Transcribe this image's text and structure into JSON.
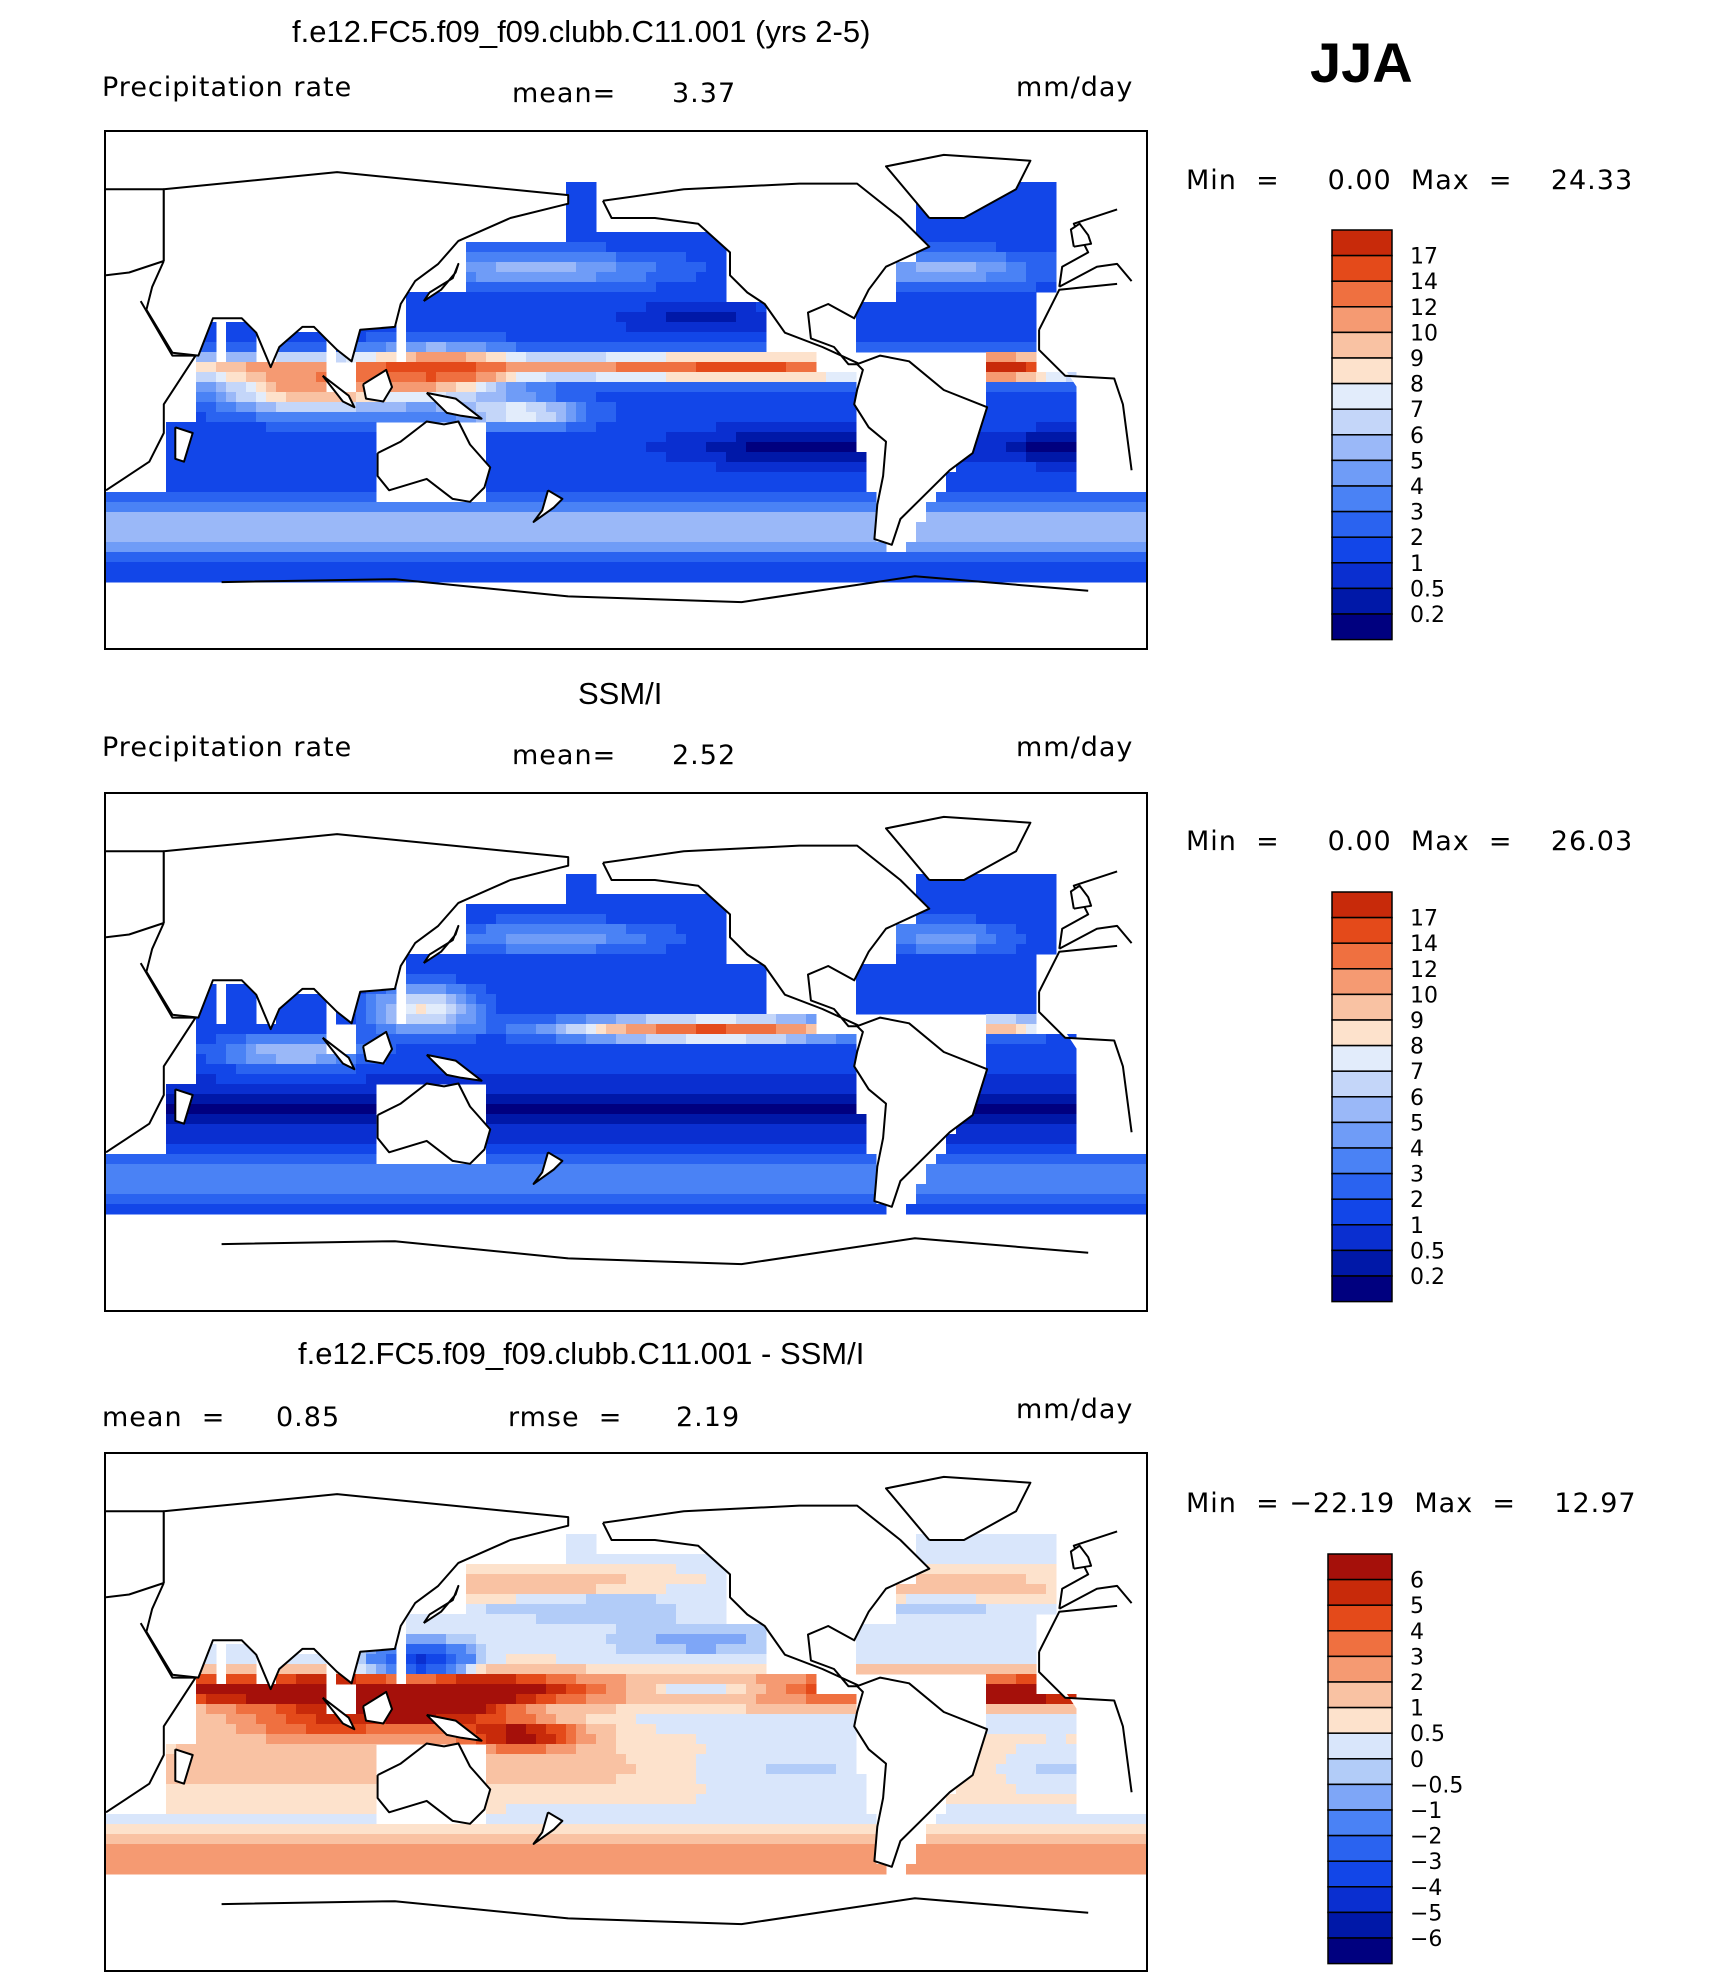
{
  "season": "JJA",
  "colors": {
    "precip_scale": [
      "#00007f",
      "#0018a8",
      "#0a2fd0",
      "#1246e8",
      "#2a63f0",
      "#4a82f5",
      "#6f9cf7",
      "#9ab8f8",
      "#c4d6f9",
      "#e2ecfb",
      "#fde2cc",
      "#f9c2a3",
      "#f59a72",
      "#ef7040",
      "#e44a1a",
      "#c82a0a",
      "#a5100a",
      "#7f0000"
    ],
    "diff_scale": [
      "#00007f",
      "#0018a8",
      "#0a2fd0",
      "#1246e8",
      "#2a63f0",
      "#4a82f5",
      "#7ea6f7",
      "#b2ccf8",
      "#d9e6fb",
      "#fde2cc",
      "#f9c2a3",
      "#f59a72",
      "#ef7040",
      "#e44a1a",
      "#c82a0a",
      "#a5100a",
      "#7f0000"
    ],
    "land": "#ffffff",
    "coast": "#000000"
  },
  "panels": [
    {
      "title": "f.e12.FC5.f09_f09.clubb.C11.001 (yrs 2-5)",
      "left_label": "Precipitation  rate",
      "center_label": "mean=",
      "center_value": "3.37",
      "units": "mm/day",
      "min_max": "Min  =     0.00  Max  =    24.33",
      "colorbar_labels": [
        "17",
        "14",
        "12",
        "10",
        "9",
        "8",
        "7",
        "6",
        "5",
        "4",
        "3",
        "2",
        "1",
        "0.5",
        "0.2"
      ]
    },
    {
      "title": "SSM/I",
      "left_label": "Precipitation  rate",
      "center_label": "mean=",
      "center_value": "2.52",
      "units": "mm/day",
      "min_max": "Min  =     0.00  Max  =    26.03",
      "colorbar_labels": [
        "17",
        "14",
        "12",
        "10",
        "9",
        "8",
        "7",
        "6",
        "5",
        "4",
        "3",
        "2",
        "1",
        "0.5",
        "0.2"
      ]
    },
    {
      "title": "f.e12.FC5.f09_f09.clubb.C11.001 - SSM/I",
      "left_label": "mean  =",
      "left_value": "0.85",
      "center_label": "rmse  =",
      "center_value": "2.19",
      "units": "mm/day",
      "min_max": "Min  = −22.19  Max  =    12.97",
      "colorbar_labels": [
        "6",
        "5",
        "4",
        "3",
        "2",
        "1",
        "0.5",
        "0",
        "−0.5",
        "−1",
        "−2",
        "−3",
        "−4",
        "−5",
        "−6"
      ]
    }
  ]
}
